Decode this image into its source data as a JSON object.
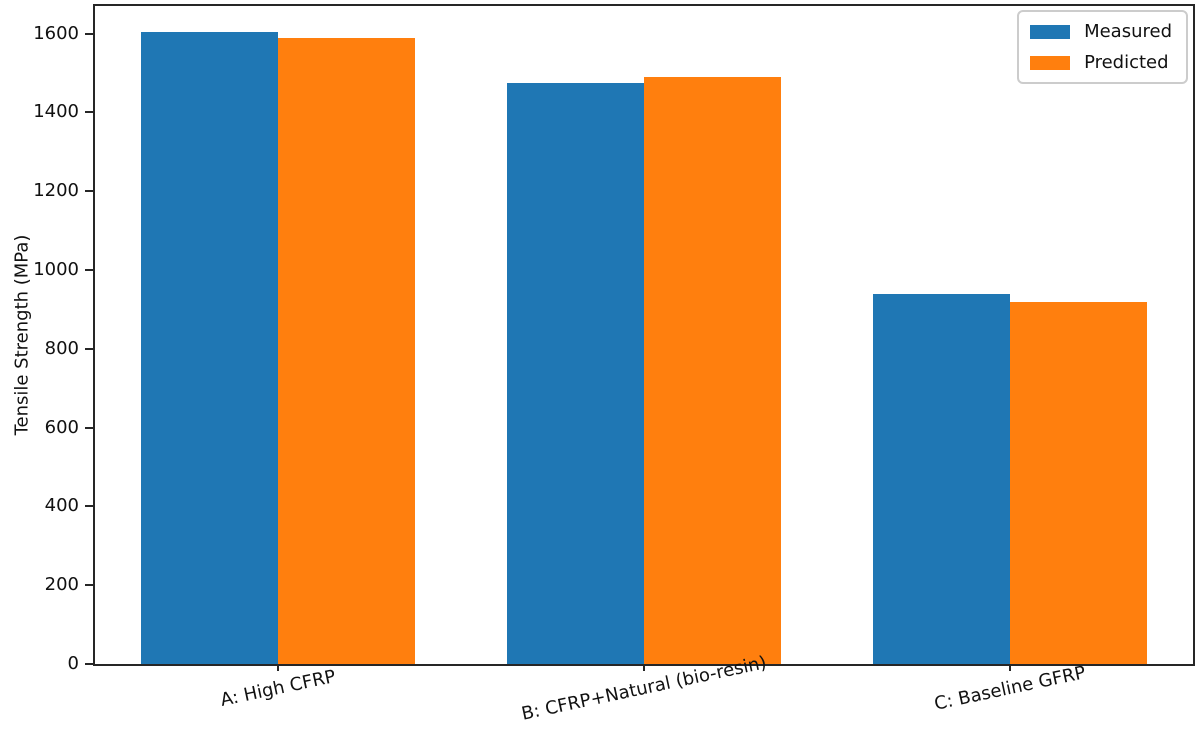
{
  "chart_data": {
    "type": "bar",
    "categories": [
      "A: High CFRP",
      "B: CFRP+Natural (bio-resin)",
      "C: Baseline GFRP"
    ],
    "series": [
      {
        "name": "Measured",
        "color": "#1f77b4",
        "values": [
          1605,
          1475,
          940
        ]
      },
      {
        "name": "Predicted",
        "color": "#ff7f0e",
        "values": [
          1590,
          1490,
          920
        ]
      }
    ],
    "ylabel": "Tensile Strength (MPa)",
    "ylim": [
      0,
      1670
    ],
    "yticks": [
      0,
      200,
      400,
      600,
      800,
      1000,
      1200,
      1400,
      1600
    ],
    "grid": false,
    "legend": {
      "position": "upper right"
    },
    "axis_color": "#262626",
    "bar_width_fraction": 0.375
  }
}
